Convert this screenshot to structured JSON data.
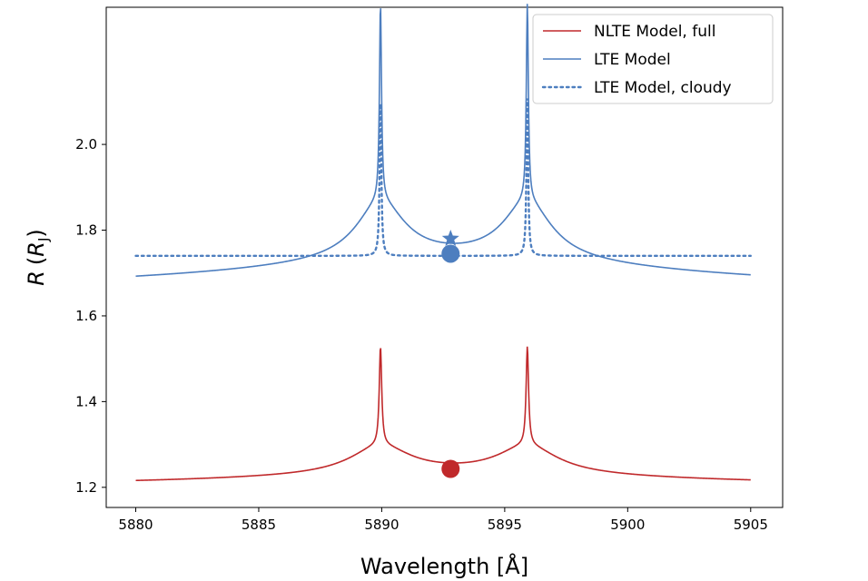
{
  "chart_data": {
    "type": "line",
    "title": "",
    "xlabel": "Wavelength [Å]",
    "ylabel_prefix": "R",
    "ylabel_unit": "R",
    "ylabel_unit_sub": "J",
    "xlim": [
      5878.8,
      5906.3
    ],
    "ylim": [
      1.153,
      2.32
    ],
    "x_ticks": [
      5880,
      5885,
      5890,
      5895,
      5900,
      5905
    ],
    "y_ticks": [
      1.2,
      1.4,
      1.6,
      1.8,
      2.0
    ],
    "x_tick_labels": [
      "5880",
      "5885",
      "5890",
      "5895",
      "5900",
      "5905"
    ],
    "y_tick_labels": [
      "1.2",
      "1.4",
      "1.6",
      "1.8",
      "2.0"
    ],
    "grid": false,
    "legend_position": "top-right",
    "lines": {
      "D2": 5889.95,
      "D1": 5895.92
    },
    "series": [
      {
        "name": "NLTE Model, full",
        "color": "#c0292b",
        "style": "solid",
        "baseline": 1.2,
        "continuum_amp": 0.04,
        "peak_amp": 0.23,
        "peak_width": 0.06,
        "wing_width": 1.5,
        "wing_amp": 0.18
      },
      {
        "name": "LTE Model",
        "color": "#4d7ebf",
        "style": "solid",
        "baseline": 1.655,
        "continuum_amp": 0.1,
        "peak_amp": 0.46,
        "peak_width": 0.05,
        "wing_width": 1.2,
        "wing_amp": 0.37
      },
      {
        "name": "LTE Model, cloudy",
        "color": "#4d7ebf",
        "style": "dotted",
        "baseline": 1.74,
        "continuum_amp": 0.0,
        "peak_amp": 0.37,
        "peak_width": 0.04,
        "wing_width": 1.0,
        "wing_amp": 0.0
      }
    ],
    "markers": [
      {
        "shape": "circle",
        "x": 5892.8,
        "y": 1.243,
        "color": "#c0292b"
      },
      {
        "shape": "circle",
        "x": 5892.8,
        "y": 1.745,
        "color": "#4d7ebf"
      },
      {
        "shape": "star",
        "x": 5892.8,
        "y": 1.78,
        "color": "#4d7ebf"
      }
    ]
  }
}
